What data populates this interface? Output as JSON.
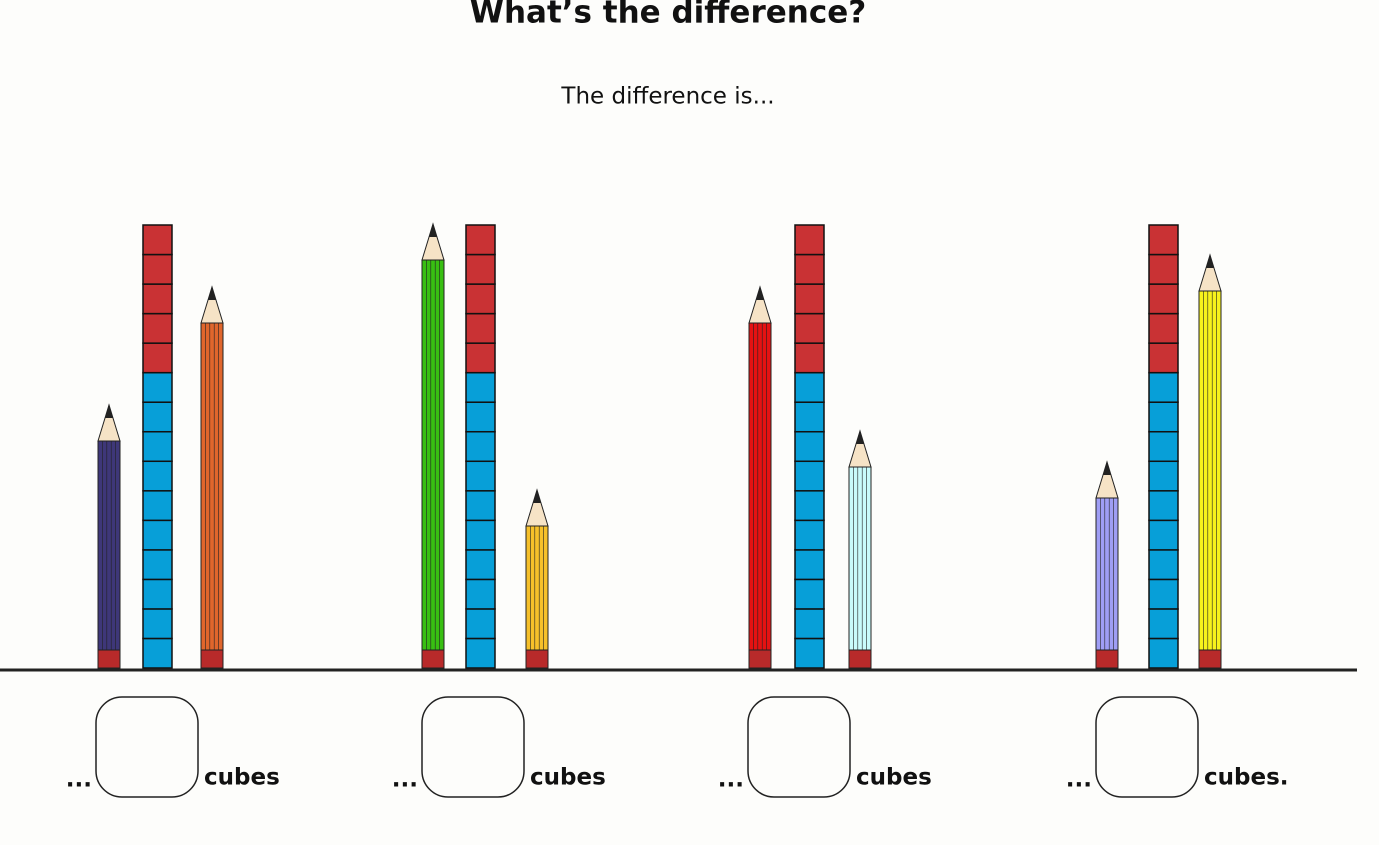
{
  "header": {
    "title": "What’s the difference?",
    "subtitle": "The difference is..."
  },
  "questions": [
    {
      "prefix": "...",
      "suffix": "cubes"
    },
    {
      "prefix": "...",
      "suffix": "cubes"
    },
    {
      "prefix": "...",
      "suffix": "cubes"
    },
    {
      "prefix": "...",
      "suffix": "cubes."
    }
  ]
}
